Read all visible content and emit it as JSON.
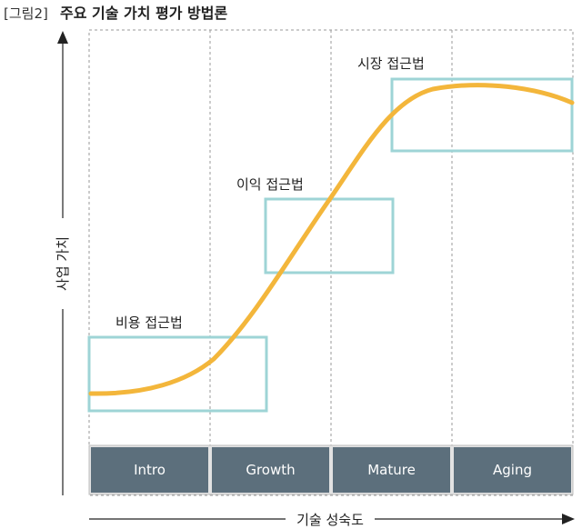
{
  "figure": {
    "caption_tag": "[그림2]",
    "caption_title": "주요 기술 가치 평가 방법론"
  },
  "axes": {
    "y_label": "사업 가치",
    "x_label": "기술 성숙도"
  },
  "stages": [
    "Intro",
    "Growth",
    "Mature",
    "Aging"
  ],
  "approaches": {
    "cost": "비용 접근법",
    "income": "이익 접근법",
    "market": "시장 접근법"
  },
  "colors": {
    "curve": "#F3B63B",
    "box_border": "#9ED4D6",
    "stage_fill": "#5C6F7C",
    "stage_text": "#ffffff",
    "grid": "#9a9a9a",
    "axis": "#222222"
  }
}
